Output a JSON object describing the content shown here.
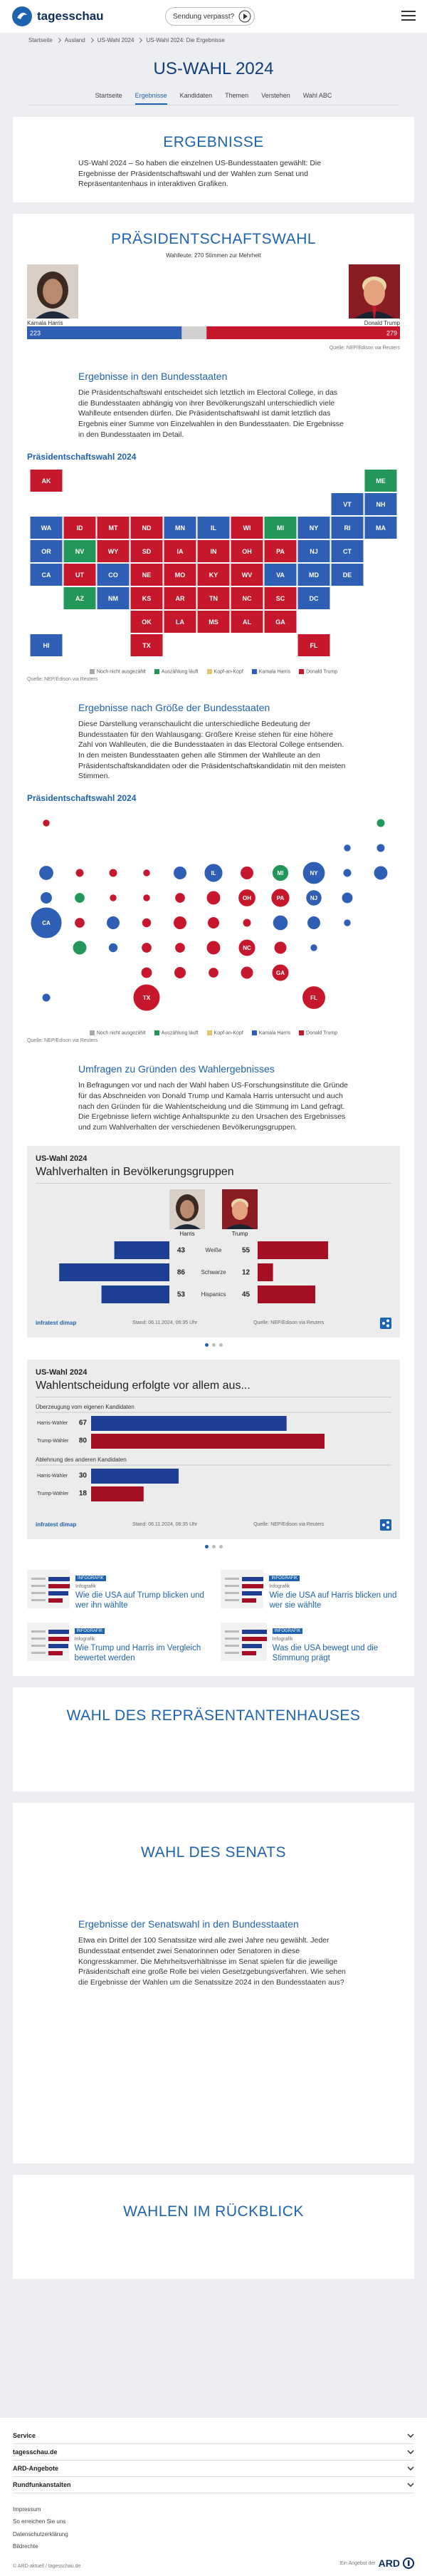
{
  "header": {
    "logo": "tagesschau",
    "missed": "Sendung verpasst?"
  },
  "breadcrumb": [
    "Startseite",
    "Ausland",
    "US-Wahl 2024",
    "US-Wahl 2024: Die Ergebnisse"
  ],
  "page_title": "US-WAHL 2024",
  "nav": [
    "Startseite",
    "Ergebnisse",
    "Kandidaten",
    "Themen",
    "Verstehen",
    "Wahl ABC"
  ],
  "results": {
    "title": "ERGEBNISSE",
    "text": "US-Wahl 2024 – So haben die einzelnen US-Bundesstaaten gewählt: Die Ergebnisse der Präsidentschaftswahl und der Wahlen zum Senat und Repräsentantenhaus in interaktiven Grafiken."
  },
  "president": {
    "title": "PRÄSIDENTSCHAFTSWAHL",
    "states_heading": "Ergebnisse in den Bundesstaaten",
    "states_text": "Die Präsidentschaftswahl entscheidet sich letztlich im Electoral College, in das die Bundesstaaten abhängig von ihrer Bevölkerungszahl unterschiedlich viele Wahlleute entsenden dürfen. Die Präsidentschaftswahl ist damit letztlich das Ergebnis einer Summe von Einzelwahlen in den Bundesstaaten. Die Ergebnisse in den Bundesstaaten im Detail.",
    "size_heading": "Ergebnisse nach Größe der Bundesstaaten",
    "size_text": "Diese Darstellung veranschaulicht die unterschiedliche Bedeutung der Bundesstaaten für den Wahlausgang: Größere Kreise stehen für eine höhere Zahl von Wahlleuten, die die Bundesstaaten in das Electoral College entsenden. In den meisten Bundesstaaten gehen alle Stimmen der Wahlleute an den Präsidentschaftskandidaten oder die Präsidentschaftskandidatin mit den meisten Stimmen.",
    "polls_heading": "Umfragen zu Gründen des Wahlergebnisses",
    "polls_text": "In Befragungen vor und nach der Wahl haben US-Forschungsinstitute die Gründe für das Abschneiden von Donald Trump und Kamala Harris untersucht und auch nach den Gründen für die Wahlentscheidung und die Stimmung im Land gefragt. Die Ergebnisse liefern wichtige Anhaltspunkte zu den Ursachen des Ergebnisses und zum Wahlverhalten der verschiedenen Bevölkerungsgruppen."
  },
  "chart_data": [
    {
      "type": "bar",
      "subtitle": "Wahlleute: 270 Stimmen zur Mehrheit",
      "xlim": [
        0,
        538
      ],
      "series": [
        {
          "name": "Kamala Harris",
          "color": "#2f5fb5",
          "values": [
            223
          ]
        },
        {
          "name": "Donald Trump",
          "color": "#c7172c",
          "values": [
            279
          ]
        }
      ],
      "source": "Quelle: NEP/Edison via Reuters"
    },
    {
      "type": "map",
      "title": "Präsidentschaftswahl 2024",
      "legend": [
        {
          "name": "Noch nicht ausgezählt",
          "color": "#a8a8a8"
        },
        {
          "name": "Auszählung läuft",
          "color": "#23965a"
        },
        {
          "name": "Kopf-an-Kopf",
          "color": "#e3c46a"
        },
        {
          "name": "Kamala Harris",
          "color": "#2f5fb5"
        },
        {
          "name": "Donald Trump",
          "color": "#c7172c"
        }
      ],
      "states": [
        {
          "name": "AK",
          "category": 4
        },
        {
          "name": "ME",
          "category": 1
        },
        {
          "name": "VT",
          "category": 3
        },
        {
          "name": "NH",
          "category": 3
        },
        {
          "name": "WA",
          "category": 3
        },
        {
          "name": "ID",
          "category": 4
        },
        {
          "name": "MT",
          "category": 4
        },
        {
          "name": "ND",
          "category": 4
        },
        {
          "name": "MN",
          "category": 3
        },
        {
          "name": "IL",
          "category": 3
        },
        {
          "name": "WI",
          "category": 4
        },
        {
          "name": "MI",
          "category": 1
        },
        {
          "name": "NY",
          "category": 3
        },
        {
          "name": "RI",
          "category": 3
        },
        {
          "name": "MA",
          "category": 3
        },
        {
          "name": "OR",
          "category": 3
        },
        {
          "name": "NV",
          "category": 1
        },
        {
          "name": "WY",
          "category": 4
        },
        {
          "name": "SD",
          "category": 4
        },
        {
          "name": "IA",
          "category": 4
        },
        {
          "name": "IN",
          "category": 4
        },
        {
          "name": "OH",
          "category": 4
        },
        {
          "name": "PA",
          "category": 4
        },
        {
          "name": "NJ",
          "category": 3
        },
        {
          "name": "CT",
          "category": 3
        },
        {
          "name": "CA",
          "category": 3
        },
        {
          "name": "UT",
          "category": 4
        },
        {
          "name": "CO",
          "category": 3
        },
        {
          "name": "NE",
          "category": 4
        },
        {
          "name": "MO",
          "category": 4
        },
        {
          "name": "KY",
          "category": 4
        },
        {
          "name": "WV",
          "category": 4
        },
        {
          "name": "VA",
          "category": 3
        },
        {
          "name": "MD",
          "category": 3
        },
        {
          "name": "DE",
          "category": 3
        },
        {
          "name": "AZ",
          "category": 1
        },
        {
          "name": "NM",
          "category": 3
        },
        {
          "name": "KS",
          "category": 4
        },
        {
          "name": "AR",
          "category": 4
        },
        {
          "name": "TN",
          "category": 4
        },
        {
          "name": "NC",
          "category": 4
        },
        {
          "name": "SC",
          "category": 4
        },
        {
          "name": "DC",
          "category": 3
        },
        {
          "name": "OK",
          "category": 4
        },
        {
          "name": "LA",
          "category": 4
        },
        {
          "name": "MS",
          "category": 4
        },
        {
          "name": "AL",
          "category": 4
        },
        {
          "name": "GA",
          "category": 4
        },
        {
          "name": "HI",
          "category": 3
        },
        {
          "name": "TX",
          "category": 4
        },
        {
          "name": "FL",
          "category": 4
        }
      ],
      "source": "Quelle: NEP/Edison via Reuters"
    },
    {
      "type": "bubble",
      "title": "Präsidentschaftswahl 2024",
      "legend": [
        {
          "name": "Noch nicht ausgezählt",
          "color": "#a8a8a8"
        },
        {
          "name": "Auszählung läuft",
          "color": "#23965a"
        },
        {
          "name": "Kopf-an-Kopf",
          "color": "#e3c46a"
        },
        {
          "name": "Kamala Harris",
          "color": "#2f5fb5"
        },
        {
          "name": "Donald Trump",
          "color": "#c7172c"
        }
      ],
      "states": [
        {
          "name": "AK",
          "category": 4,
          "votes": 3
        },
        {
          "name": "ME",
          "category": 1,
          "votes": 4
        },
        {
          "name": "VT",
          "category": 3,
          "votes": 3
        },
        {
          "name": "NH",
          "category": 3,
          "votes": 4
        },
        {
          "name": "WA",
          "category": 3,
          "votes": 12
        },
        {
          "name": "ID",
          "category": 4,
          "votes": 4
        },
        {
          "name": "MT",
          "category": 4,
          "votes": 4
        },
        {
          "name": "ND",
          "category": 4,
          "votes": 3
        },
        {
          "name": "MN",
          "category": 3,
          "votes": 10
        },
        {
          "name": "IL",
          "category": 3,
          "votes": 19
        },
        {
          "name": "WI",
          "category": 4,
          "votes": 10
        },
        {
          "name": "MI",
          "category": 1,
          "votes": 15
        },
        {
          "name": "NY",
          "category": 3,
          "votes": 28
        },
        {
          "name": "RI",
          "category": 3,
          "votes": 4
        },
        {
          "name": "MA",
          "category": 3,
          "votes": 11
        },
        {
          "name": "OR",
          "category": 3,
          "votes": 8
        },
        {
          "name": "NV",
          "category": 1,
          "votes": 6
        },
        {
          "name": "WY",
          "category": 4,
          "votes": 3
        },
        {
          "name": "SD",
          "category": 4,
          "votes": 3
        },
        {
          "name": "IA",
          "category": 4,
          "votes": 6
        },
        {
          "name": "IN",
          "category": 4,
          "votes": 11
        },
        {
          "name": "OH",
          "category": 4,
          "votes": 17
        },
        {
          "name": "PA",
          "category": 4,
          "votes": 19
        },
        {
          "name": "NJ",
          "category": 3,
          "votes": 14
        },
        {
          "name": "CT",
          "category": 3,
          "votes": 7
        },
        {
          "name": "CA",
          "category": 3,
          "votes": 54
        },
        {
          "name": "UT",
          "category": 4,
          "votes": 6
        },
        {
          "name": "CO",
          "category": 3,
          "votes": 10
        },
        {
          "name": "NE",
          "category": 4,
          "votes": 5
        },
        {
          "name": "MO",
          "category": 4,
          "votes": 10
        },
        {
          "name": "KY",
          "category": 4,
          "votes": 8
        },
        {
          "name": "WV",
          "category": 4,
          "votes": 4
        },
        {
          "name": "VA",
          "category": 3,
          "votes": 13
        },
        {
          "name": "MD",
          "category": 3,
          "votes": 10
        },
        {
          "name": "DE",
          "category": 3,
          "votes": 3
        },
        {
          "name": "AZ",
          "category": 1,
          "votes": 11
        },
        {
          "name": "NM",
          "category": 3,
          "votes": 5
        },
        {
          "name": "KS",
          "category": 4,
          "votes": 6
        },
        {
          "name": "AR",
          "category": 4,
          "votes": 6
        },
        {
          "name": "TN",
          "category": 4,
          "votes": 11
        },
        {
          "name": "NC",
          "category": 4,
          "votes": 16
        },
        {
          "name": "SC",
          "category": 4,
          "votes": 9
        },
        {
          "name": "DC",
          "category": 3,
          "votes": 3
        },
        {
          "name": "OK",
          "category": 4,
          "votes": 7
        },
        {
          "name": "LA",
          "category": 4,
          "votes": 8
        },
        {
          "name": "MS",
          "category": 4,
          "votes": 6
        },
        {
          "name": "AL",
          "category": 4,
          "votes": 9
        },
        {
          "name": "GA",
          "category": 4,
          "votes": 16
        },
        {
          "name": "HI",
          "category": 3,
          "votes": 4
        },
        {
          "name": "TX",
          "category": 4,
          "votes": 40
        },
        {
          "name": "FL",
          "category": 4,
          "votes": 30
        }
      ],
      "source": "Quelle: NEP/Edison via Reuters"
    },
    {
      "type": "poll",
      "kicker": "US-Wahl 2024",
      "title": "Wahlverhalten in Bevölkerungsgruppen",
      "categories": [
        "Weiße",
        "Schwarze",
        "Hispanics"
      ],
      "xlim": [
        0,
        100
      ],
      "series": [
        {
          "name": "Harris",
          "color": "#1c3f94",
          "values": [
            43,
            86,
            53
          ]
        },
        {
          "name": "Trump",
          "color": "#a50f24",
          "values": [
            55,
            12,
            45
          ]
        }
      ],
      "brand": "infratest dimap",
      "stand": "Stand: 06.11.2024, 06:35 Uhr",
      "source": "Quelle: NEP/Edison via Reuters"
    },
    {
      "type": "grouped",
      "kicker": "US-Wahl 2024",
      "title": "Wahlentscheidung erfolgte vor allem aus...",
      "xlim": [
        0,
        100
      ],
      "colors": [
        "#1c3f94",
        "#a50f24"
      ],
      "groups": [
        {
          "name": "Überzeugung vom eigenen Kandidaten",
          "categories": [
            "Harris-Wähler",
            "Trump-Wähler"
          ],
          "values": [
            67,
            80
          ]
        },
        {
          "name": "Ablehnung des anderen Kandidaten",
          "categories": [
            "Harris-Wähler",
            "Trump-Wähler"
          ],
          "values": [
            30,
            18
          ]
        }
      ],
      "brand": "infratest dimap",
      "stand": "Stand: 06.11.2024, 06:35 Uhr",
      "source": "Quelle: NEP/Edison via Reuters"
    }
  ],
  "teasers": [
    {
      "badge": "INFOGRAFIK",
      "topline": "Infografik",
      "title": "Wie die USA auf Trump blicken und wer ihn wählte"
    },
    {
      "badge": "INFOGRAFIK",
      "topline": "Infografik",
      "title": "Wie die USA auf Harris blicken und wer sie wählte"
    },
    {
      "badge": "INFOGRAFIK",
      "topline": "Infografik",
      "title": "Wie Trump und Harris im Vergleich bewertet werden"
    },
    {
      "badge": "INFOGRAFIK",
      "topline": "Infografik",
      "title": "Was die USA bewegt und die Stimmung prägt"
    }
  ],
  "house": {
    "title": "WAHL DES REPRÄSENTANTENHAUSES"
  },
  "senate": {
    "title": "WAHL DES SENATS",
    "heading": "Ergebnisse der Senatswahl in den Bundesstaaten",
    "text": "Etwa ein Drittel der 100 Senatssitze wird alle zwei Jahre neu gewählt. Jeder Bundesstaat entsendet zwei Senatorinnen oder Senatoren in diese Kongresskammer. Die Mehrheitsverhältnisse im Senat spielen für die jeweilige Präsidentschaft eine große Rolle bei vielen Gesetzgebungsverfahren. Wie sehen die Ergebnisse der Wahlen um die Senatssitze 2024 in den Bundesstaaten aus?"
  },
  "review": {
    "title": "WAHLEN IM RÜCKBLICK"
  },
  "footer": {
    "sections": [
      "Service",
      "tagesschau.de",
      "ARD-Angebote",
      "Rundfunkanstalten"
    ],
    "links": [
      "Impressum",
      "So erreichen Sie uns",
      "Datenschutzerklärung",
      "Bildrechte"
    ],
    "copyright": "© ARD-aktuell / tagesschau.de",
    "claim": "Ein Angebot der",
    "ard": "ARD"
  }
}
